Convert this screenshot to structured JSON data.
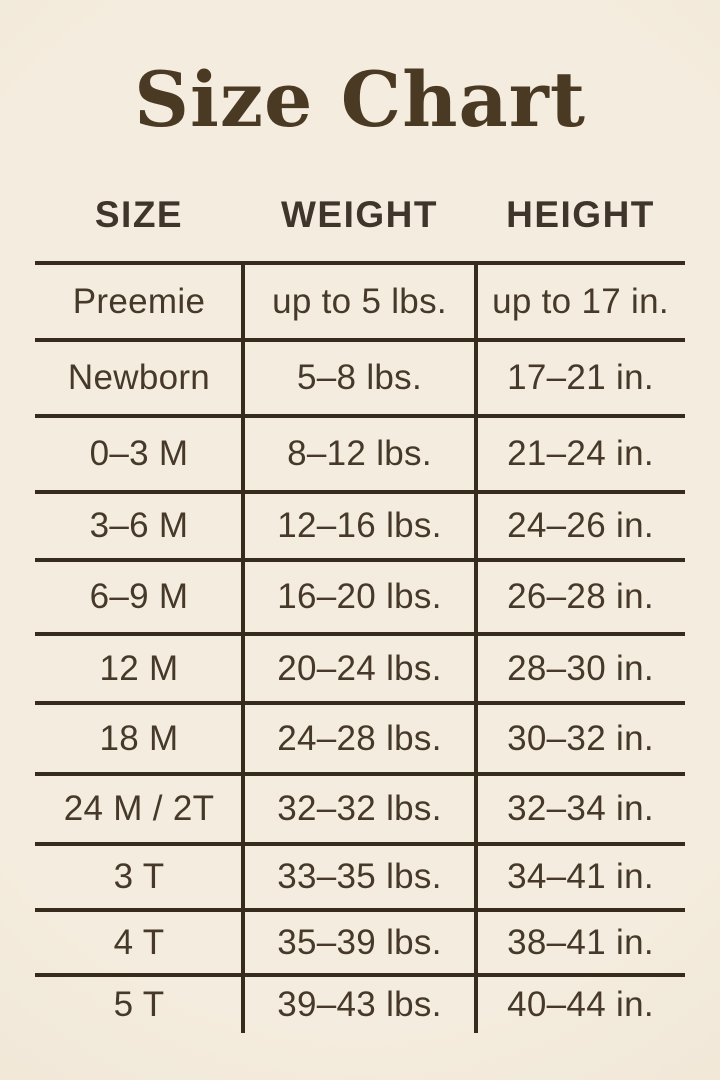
{
  "title": "Size Chart",
  "colors": {
    "background": "#f3ebdd",
    "title_text": "#4b3a23",
    "body_text": "#46392a",
    "grid_line": "#362b1c"
  },
  "chart_data": {
    "type": "table",
    "title": "Size Chart",
    "columns": [
      "SIZE",
      "WEIGHT",
      "HEIGHT"
    ],
    "rows": [
      {
        "size": "Preemie",
        "weight": "up to 5 lbs.",
        "height": "up to 17 in."
      },
      {
        "size": "Newborn",
        "weight": "5–8 lbs.",
        "height": "17–21 in."
      },
      {
        "size": "0–3 M",
        "weight": "8–12 lbs.",
        "height": "21–24 in."
      },
      {
        "size": "3–6 M",
        "weight": "12–16 lbs.",
        "height": "24–26 in."
      },
      {
        "size": "6–9 M",
        "weight": "16–20 lbs.",
        "height": "26–28 in."
      },
      {
        "size": "12 M",
        "weight": "20–24 lbs.",
        "height": "28–30 in."
      },
      {
        "size": "18 M",
        "weight": "24–28 lbs.",
        "height": "30–32 in."
      },
      {
        "size": "24 M / 2T",
        "weight": "32–32 lbs.",
        "height": "32–34 in."
      },
      {
        "size": "3 T",
        "weight": "33–35 lbs.",
        "height": "34–41 in."
      },
      {
        "size": "4 T",
        "weight": "35–39 lbs.",
        "height": "38–41 in."
      },
      {
        "size": "5 T",
        "weight": "39–43 lbs.",
        "height": "40–44 in."
      }
    ],
    "layout": {
      "grid": "on",
      "header_position": "top",
      "note": "no bottom border line; column dividers extend below last row"
    }
  }
}
